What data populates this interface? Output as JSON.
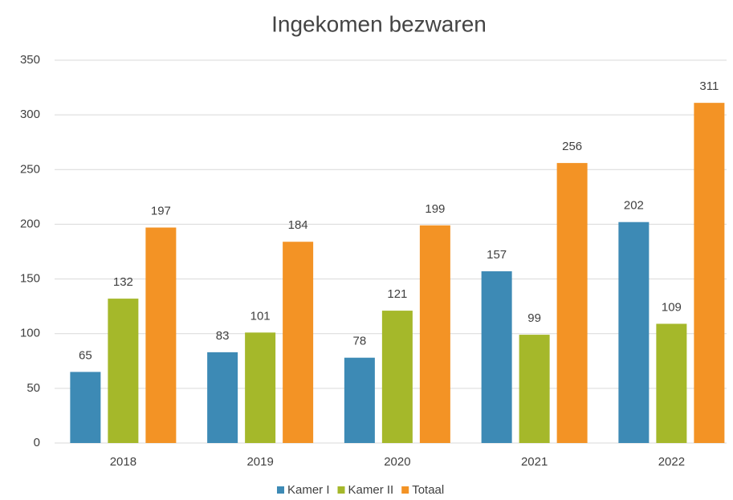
{
  "chart_data": {
    "type": "bar",
    "title": "Ingekomen bezwaren",
    "categories": [
      "2018",
      "2019",
      "2020",
      "2021",
      "2022"
    ],
    "series": [
      {
        "name": "Kamer I",
        "color": "#3d8ab5",
        "values": [
          65,
          83,
          78,
          157,
          202
        ]
      },
      {
        "name": "Kamer II",
        "color": "#a5b82a",
        "values": [
          132,
          101,
          121,
          99,
          109
        ]
      },
      {
        "name": "Totaal",
        "color": "#f39325",
        "values": [
          197,
          184,
          199,
          256,
          311
        ]
      }
    ],
    "ylim": [
      0,
      350
    ],
    "yticks": [
      0,
      50,
      100,
      150,
      200,
      250,
      300,
      350
    ],
    "grid": true,
    "legend": "bottom"
  }
}
